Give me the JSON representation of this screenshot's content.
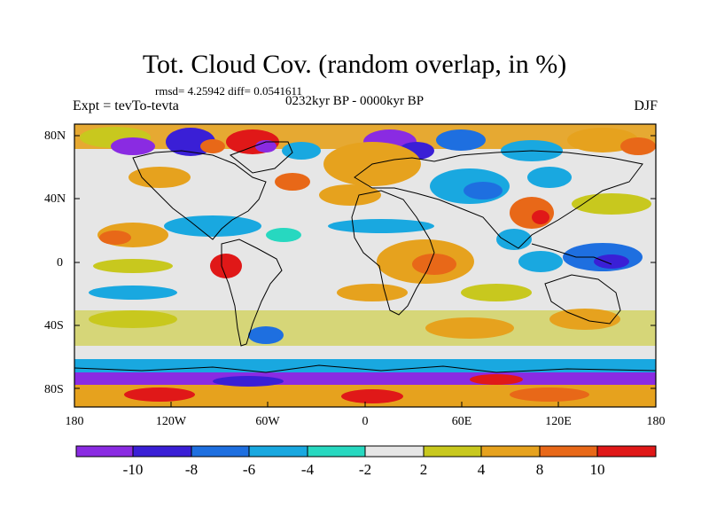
{
  "title": "Tot. Cloud Cov. (random overlap, in %)",
  "stats": "rmsd= 4.25942 diff= 0.0541611",
  "experiment": "Expt = tevTo-tevta",
  "period": "0232kyr BP - 0000kyr BP",
  "season": "DJF",
  "lat_labels": [
    "80N",
    "40N",
    "0",
    "40S",
    "80S"
  ],
  "lon_labels": [
    "180",
    "120W",
    "60W",
    "0",
    "60E",
    "120E",
    "180"
  ],
  "colorbar": {
    "tick_labels": [
      "-10",
      "-8",
      "-6",
      "-4",
      "-2",
      "2",
      "4",
      "8",
      "10"
    ],
    "colors": [
      "#8a2be2",
      "#3a1fd6",
      "#1e6fe0",
      "#19a8e0",
      "#27d8c0",
      "#e6e6e6",
      "#c8c81e",
      "#e6a21e",
      "#e86818",
      "#e01818"
    ]
  },
  "map_fill_color": "#e6e6e6"
}
